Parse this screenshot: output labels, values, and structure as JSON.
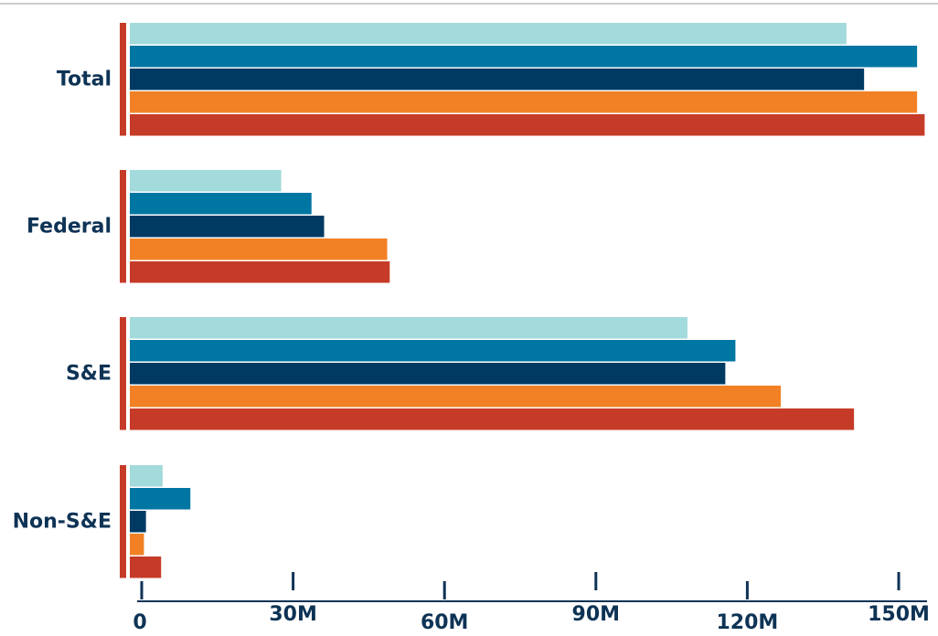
{
  "chart_data": {
    "type": "bar",
    "orientation": "horizontal",
    "categories": [
      "Total",
      "Federal",
      "S&E",
      "Non-S&E"
    ],
    "series": [
      {
        "color": "#a3dadb",
        "values": [
          142,
          30,
          110.5,
          6.5
        ]
      },
      {
        "color": "#0076a3",
        "values": [
          156,
          36,
          120,
          12
        ]
      },
      {
        "color": "#003a63",
        "values": [
          145.5,
          38.5,
          118,
          3.2
        ]
      },
      {
        "color": "#f28125",
        "values": [
          156,
          51,
          129,
          2.8
        ]
      },
      {
        "color": "#c63b28",
        "values": [
          157.5,
          51.5,
          143.5,
          6.2
        ]
      }
    ],
    "xlim": [
      0,
      157.5
    ],
    "xticks": [
      {
        "value": 0,
        "label": "0"
      },
      {
        "value": 30,
        "label": "30M"
      },
      {
        "value": 60,
        "label": "60M"
      },
      {
        "value": 90,
        "label": "90M"
      },
      {
        "value": 120,
        "label": "120M"
      },
      {
        "value": 150,
        "label": "150M"
      }
    ],
    "grid": false,
    "legend": "none",
    "title": "",
    "xlabel": "",
    "ylabel": "",
    "colors": {
      "axis": "#0e3355",
      "category_marker": "#c63b28",
      "top_rule": "#cccccc",
      "text": "#0e3355"
    }
  }
}
